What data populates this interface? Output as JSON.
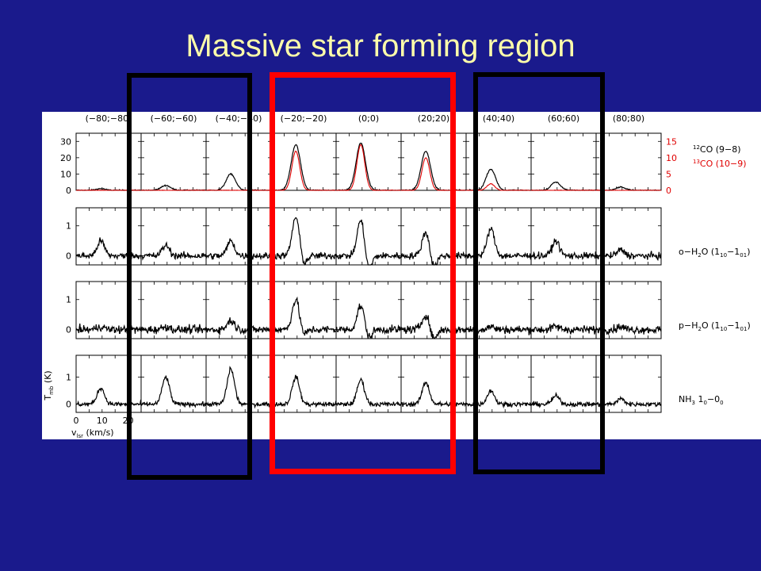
{
  "slide": {
    "title": "Massive star forming region",
    "background_color": "#1a1a8c",
    "title_color": "#ffffaa"
  },
  "highlight_boxes": [
    {
      "name": "left-column-group",
      "color": "#000000"
    },
    {
      "name": "central-column-group",
      "color": "#ff0000"
    },
    {
      "name": "right-column-group",
      "color": "#000000"
    }
  ],
  "chart_data": {
    "type": "line",
    "description_source": "grid of spectra at map offsets",
    "offsets": [
      "(−80;−80)",
      "(−60;−60)",
      "(−40;−40)",
      "(−20;−20)",
      "(0;0)",
      "(20;20)",
      "(40;40)",
      "(60;60)",
      "(80;80)"
    ],
    "ylabel": "T",
    "ylabel_sub": "mb",
    "ylabel_unit": " (K)",
    "xlabel": "v",
    "xlabel_sub": "lsr",
    "xlabel_unit": " (km/s)",
    "x_ticks": [
      "0",
      "10",
      "20"
    ],
    "xlim": [
      0,
      25
    ],
    "peak_velocity": 9.5,
    "colors": {
      "black_series": "#000000",
      "red_series": "#e00000"
    },
    "rows": [
      {
        "species": "CO",
        "ylim": [
          0,
          35
        ],
        "yticks_left": [
          "30",
          "20",
          "10",
          "0"
        ],
        "yticks_left_values": [
          30,
          20,
          10,
          0
        ],
        "yticks_right": [
          "15",
          "10",
          "5",
          "0"
        ],
        "yticks_right_values": [
          15,
          10,
          5,
          0
        ],
        "label_black": {
          "pre": "12",
          "main": "CO (9−8)"
        },
        "label_red": {
          "pre": "13",
          "main": "CO (10−9)"
        },
        "black_peaks": [
          1,
          3,
          10,
          28,
          29,
          24,
          13,
          5,
          2
        ],
        "red_peaks": [
          0,
          0,
          0,
          12,
          14,
          10,
          2,
          0,
          0
        ],
        "red_scale_max": 17.5
      },
      {
        "species": "o-H2O",
        "ylim": [
          -0.3,
          1.6
        ],
        "yticks_left": [
          "1",
          "0"
        ],
        "yticks_left_values": [
          1,
          0
        ],
        "label": {
          "main": "o−H",
          "sub1": "2",
          "mid": "O (1",
          "sub2": "10",
          "dash": "−1",
          "sub3": "01",
          "end": ")"
        },
        "peaks": [
          0.5,
          0.35,
          0.5,
          1.3,
          1.2,
          0.8,
          0.9,
          0.5,
          0.2
        ],
        "dips": [
          0,
          0,
          0,
          0.3,
          0.5,
          0.4,
          0,
          0,
          0
        ]
      },
      {
        "species": "p-H2O",
        "ylim": [
          -0.3,
          1.6
        ],
        "yticks_left": [
          "1",
          "0"
        ],
        "yticks_left_values": [
          1,
          0
        ],
        "label": {
          "main": "p−H",
          "sub1": "2",
          "mid": "O (1",
          "sub2": "10",
          "dash": "−1",
          "sub3": "01",
          "end": ")"
        },
        "peaks": [
          0.1,
          0.1,
          0.3,
          1.0,
          0.8,
          0.5,
          0.1,
          0.1,
          0.1
        ],
        "dips": [
          0,
          0,
          0,
          0.2,
          0.3,
          0.35,
          0,
          0,
          0
        ]
      },
      {
        "species": "NH3",
        "ylim": [
          -0.3,
          1.8
        ],
        "yticks_left": [
          "1",
          "0"
        ],
        "yticks_left_values": [
          1,
          0
        ],
        "label": {
          "main": "NH",
          "sub1": "3",
          "mid": " 1",
          "sub2": "0",
          "dash": "−0",
          "sub3": "0",
          "end": ""
        },
        "peaks": [
          0.6,
          1.0,
          1.3,
          1.0,
          0.9,
          0.8,
          0.5,
          0.3,
          0.2
        ],
        "dips": [
          0,
          0,
          0,
          0,
          0,
          0,
          0,
          0,
          0
        ]
      }
    ]
  }
}
